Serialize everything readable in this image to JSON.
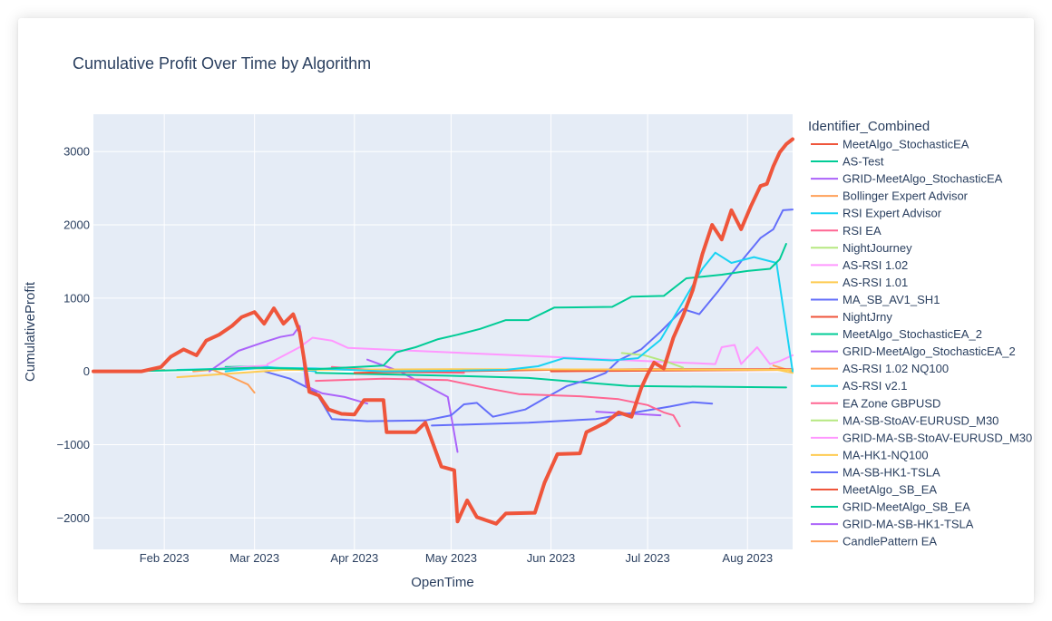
{
  "chart_data": {
    "type": "line",
    "title": "Cumulative Profit Over Time by Algorithm",
    "xlabel": "OpenTime",
    "ylabel": "CumulativeProfit",
    "xlim": [
      "2023-01-10",
      "2023-08-15"
    ],
    "ylim": [
      -2430,
      3510
    ],
    "x_ticks": [
      {
        "date": "2023-02-01",
        "label": "Feb 2023"
      },
      {
        "date": "2023-03-01",
        "label": "Mar 2023"
      },
      {
        "date": "2023-04-01",
        "label": "Apr 2023"
      },
      {
        "date": "2023-05-01",
        "label": "May 2023"
      },
      {
        "date": "2023-06-01",
        "label": "Jun 2023"
      },
      {
        "date": "2023-07-01",
        "label": "Jul 2023"
      },
      {
        "date": "2023-08-01",
        "label": "Aug 2023"
      }
    ],
    "y_ticks": [
      {
        "value": 3000,
        "label": "3000"
      },
      {
        "value": 2000,
        "label": "2000"
      },
      {
        "value": 1000,
        "label": "1000"
      },
      {
        "value": 0,
        "label": "0"
      },
      {
        "value": -1000,
        "label": "−1000"
      },
      {
        "value": -2000,
        "label": "−2000"
      }
    ],
    "grid": true,
    "legend_title": "Identifier_Combined",
    "legend_position": "right",
    "series": [
      {
        "name": "MeetAlgo_StochasticEA",
        "color": "#ef553b",
        "width": 4,
        "points": [
          [
            "2023-01-10",
            0
          ],
          [
            "2023-01-25",
            0
          ],
          [
            "2023-01-31",
            60
          ],
          [
            "2023-02-03",
            200
          ],
          [
            "2023-02-07",
            300
          ],
          [
            "2023-02-11",
            220
          ],
          [
            "2023-02-14",
            420
          ],
          [
            "2023-02-18",
            500
          ],
          [
            "2023-02-22",
            620
          ],
          [
            "2023-02-25",
            740
          ],
          [
            "2023-03-01",
            810
          ],
          [
            "2023-03-04",
            650
          ],
          [
            "2023-03-07",
            860
          ],
          [
            "2023-03-10",
            650
          ],
          [
            "2023-03-13",
            780
          ],
          [
            "2023-03-15",
            540
          ],
          [
            "2023-03-18",
            -280
          ],
          [
            "2023-03-21",
            -330
          ],
          [
            "2023-03-24",
            -520
          ],
          [
            "2023-03-28",
            -580
          ],
          [
            "2023-04-01",
            -590
          ],
          [
            "2023-04-04",
            -390
          ],
          [
            "2023-04-10",
            -390
          ],
          [
            "2023-04-11",
            -830
          ],
          [
            "2023-04-20",
            -830
          ],
          [
            "2023-04-23",
            -700
          ],
          [
            "2023-04-28",
            -1300
          ],
          [
            "2023-05-02",
            -1350
          ],
          [
            "2023-05-03",
            -2050
          ],
          [
            "2023-05-06",
            -1760
          ],
          [
            "2023-05-09",
            -1990
          ],
          [
            "2023-05-15",
            -2080
          ],
          [
            "2023-05-18",
            -1940
          ],
          [
            "2023-05-27",
            -1930
          ],
          [
            "2023-05-30",
            -1520
          ],
          [
            "2023-06-03",
            -1130
          ],
          [
            "2023-06-10",
            -1120
          ],
          [
            "2023-06-12",
            -830
          ],
          [
            "2023-06-18",
            -700
          ],
          [
            "2023-06-22",
            -560
          ],
          [
            "2023-06-26",
            -620
          ],
          [
            "2023-06-29",
            -230
          ],
          [
            "2023-07-01",
            -40
          ],
          [
            "2023-07-03",
            120
          ],
          [
            "2023-07-06",
            40
          ],
          [
            "2023-07-09",
            460
          ],
          [
            "2023-07-12",
            760
          ],
          [
            "2023-07-15",
            1110
          ],
          [
            "2023-07-18",
            1600
          ],
          [
            "2023-07-21",
            2000
          ],
          [
            "2023-07-24",
            1800
          ],
          [
            "2023-07-27",
            2200
          ],
          [
            "2023-07-30",
            1940
          ],
          [
            "2023-08-02",
            2250
          ],
          [
            "2023-08-05",
            2530
          ],
          [
            "2023-08-07",
            2560
          ],
          [
            "2023-08-09",
            2800
          ],
          [
            "2023-08-11",
            2990
          ],
          [
            "2023-08-13",
            3100
          ],
          [
            "2023-08-15",
            3170
          ]
        ]
      },
      {
        "name": "AS-Test",
        "color": "#00cc96",
        "width": 2,
        "points": [
          [
            "2023-01-20",
            0
          ],
          [
            "2023-02-10",
            20
          ],
          [
            "2023-03-01",
            50
          ],
          [
            "2023-03-20",
            30
          ],
          [
            "2023-04-10",
            80
          ],
          [
            "2023-04-14",
            260
          ],
          [
            "2023-04-20",
            330
          ],
          [
            "2023-04-27",
            440
          ],
          [
            "2023-05-03",
            500
          ],
          [
            "2023-05-10",
            580
          ],
          [
            "2023-05-18",
            700
          ],
          [
            "2023-05-25",
            700
          ],
          [
            "2023-06-02",
            870
          ],
          [
            "2023-06-20",
            880
          ],
          [
            "2023-06-26",
            1020
          ],
          [
            "2023-07-06",
            1030
          ],
          [
            "2023-07-13",
            1270
          ],
          [
            "2023-07-24",
            1320
          ],
          [
            "2023-08-01",
            1370
          ],
          [
            "2023-08-08",
            1400
          ],
          [
            "2023-08-11",
            1530
          ],
          [
            "2023-08-13",
            1740
          ]
        ]
      },
      {
        "name": "GRID-MeetAlgo_StochasticEA",
        "color": "#ab63fa",
        "width": 2,
        "points": [
          [
            "2023-02-15",
            0
          ],
          [
            "2023-02-24",
            280
          ],
          [
            "2023-03-04",
            400
          ],
          [
            "2023-03-09",
            470
          ],
          [
            "2023-03-13",
            500
          ],
          [
            "2023-03-15",
            620
          ],
          [
            "2023-03-17",
            -200
          ],
          [
            "2023-03-22",
            -300
          ],
          [
            "2023-03-29",
            -350
          ],
          [
            "2023-04-05",
            -440
          ]
        ]
      },
      {
        "name": "Bollinger Expert Advisor",
        "color": "#ffa15a",
        "width": 2,
        "points": [
          [
            "2023-02-10",
            0
          ],
          [
            "2023-02-16",
            20
          ],
          [
            "2023-02-22",
            -80
          ],
          [
            "2023-02-27",
            -180
          ],
          [
            "2023-03-01",
            -290
          ]
        ]
      },
      {
        "name": "RSI Expert Advisor",
        "color": "#19d3f3",
        "width": 2,
        "points": [
          [
            "2023-02-05",
            20
          ],
          [
            "2023-03-05",
            50
          ],
          [
            "2023-03-20",
            40
          ],
          [
            "2023-04-10",
            0
          ],
          [
            "2023-05-05",
            10
          ],
          [
            "2023-05-18",
            20
          ],
          [
            "2023-05-28",
            70
          ],
          [
            "2023-06-05",
            180
          ],
          [
            "2023-06-20",
            150
          ],
          [
            "2023-06-28",
            180
          ],
          [
            "2023-07-05",
            430
          ],
          [
            "2023-07-12",
            950
          ],
          [
            "2023-07-18",
            1400
          ],
          [
            "2023-07-22",
            1620
          ],
          [
            "2023-07-27",
            1480
          ],
          [
            "2023-08-03",
            1560
          ],
          [
            "2023-08-10",
            1480
          ],
          [
            "2023-08-15",
            0
          ]
        ]
      },
      {
        "name": "RSI EA",
        "color": "#ff6692",
        "width": 2,
        "points": [
          [
            "2023-03-20",
            -130
          ],
          [
            "2023-04-10",
            -100
          ],
          [
            "2023-04-30",
            -120
          ],
          [
            "2023-05-12",
            -230
          ],
          [
            "2023-05-22",
            -310
          ],
          [
            "2023-06-10",
            -340
          ],
          [
            "2023-06-22",
            -380
          ],
          [
            "2023-07-01",
            -460
          ],
          [
            "2023-07-06",
            -560
          ],
          [
            "2023-07-09",
            -600
          ],
          [
            "2023-07-11",
            -750
          ]
        ]
      },
      {
        "name": "NightJourney",
        "color": "#b6e880",
        "width": 2,
        "points": [
          [
            "2023-06-23",
            250
          ],
          [
            "2023-06-30",
            220
          ],
          [
            "2023-07-07",
            130
          ],
          [
            "2023-07-12",
            50
          ]
        ]
      },
      {
        "name": "AS-RSI 1.02",
        "color": "#ff97ff",
        "width": 2,
        "points": [
          [
            "2023-03-05",
            100
          ],
          [
            "2023-03-15",
            330
          ],
          [
            "2023-03-19",
            460
          ],
          [
            "2023-03-25",
            420
          ],
          [
            "2023-03-30",
            320
          ],
          [
            "2023-07-22",
            100
          ],
          [
            "2023-07-24",
            330
          ],
          [
            "2023-07-28",
            360
          ],
          [
            "2023-07-30",
            100
          ],
          [
            "2023-08-04",
            330
          ],
          [
            "2023-08-08",
            100
          ],
          [
            "2023-08-11",
            140
          ],
          [
            "2023-08-15",
            220
          ]
        ]
      },
      {
        "name": "AS-RSI 1.01",
        "color": "#fecb52",
        "width": 2,
        "points": [
          [
            "2023-02-05",
            -80
          ],
          [
            "2023-03-10",
            20
          ],
          [
            "2023-05-01",
            30
          ],
          [
            "2023-08-15",
            20
          ]
        ]
      },
      {
        "name": "MA_SB_AV1_SH1",
        "color": "#636efa",
        "width": 2,
        "points": [
          [
            "2023-03-04",
            0
          ],
          [
            "2023-03-12",
            -100
          ],
          [
            "2023-03-20",
            -280
          ],
          [
            "2023-03-25",
            -650
          ],
          [
            "2023-04-05",
            -680
          ],
          [
            "2023-04-23",
            -670
          ],
          [
            "2023-05-01",
            -600
          ],
          [
            "2023-05-05",
            -450
          ],
          [
            "2023-05-09",
            -430
          ],
          [
            "2023-05-14",
            -620
          ],
          [
            "2023-05-24",
            -520
          ],
          [
            "2023-05-30",
            -370
          ],
          [
            "2023-06-06",
            -200
          ],
          [
            "2023-06-14",
            -90
          ],
          [
            "2023-06-18",
            -20
          ],
          [
            "2023-06-22",
            150
          ],
          [
            "2023-06-29",
            300
          ],
          [
            "2023-07-05",
            540
          ],
          [
            "2023-07-12",
            850
          ],
          [
            "2023-07-17",
            780
          ],
          [
            "2023-07-23",
            1100
          ],
          [
            "2023-07-30",
            1500
          ],
          [
            "2023-08-05",
            1820
          ],
          [
            "2023-08-09",
            1940
          ],
          [
            "2023-08-12",
            2200
          ],
          [
            "2023-08-15",
            2210
          ]
        ]
      },
      {
        "name": "NightJrny",
        "color": "#ef553b",
        "width": 2,
        "points": [
          [
            "2023-04-01",
            -20
          ],
          [
            "2023-06-01",
            20
          ],
          [
            "2023-07-01",
            30
          ],
          [
            "2023-08-15",
            30
          ]
        ]
      },
      {
        "name": "MeetAlgo_StochasticEA_2",
        "color": "#00cc96",
        "width": 2,
        "points": [
          [
            "2023-03-20",
            -20
          ],
          [
            "2023-05-01",
            -60
          ],
          [
            "2023-05-25",
            -90
          ],
          [
            "2023-06-25",
            -200
          ],
          [
            "2023-08-13",
            -220
          ]
        ]
      },
      {
        "name": "GRID-MeetAlgo_StochasticEA_2",
        "color": "#ab63fa",
        "width": 2,
        "points": [
          [
            "2023-04-05",
            160
          ],
          [
            "2023-04-15",
            0
          ],
          [
            "2023-04-30",
            -350
          ],
          [
            "2023-05-03",
            -1100
          ]
        ]
      },
      {
        "name": "AS-RSI 1.02 NQ100",
        "color": "#ffa15a",
        "width": 2,
        "points": [
          [
            "2023-08-09",
            80
          ],
          [
            "2023-08-15",
            0
          ]
        ]
      },
      {
        "name": "AS-RSI v2.1",
        "color": "#19d3f3",
        "width": 2,
        "points": [
          [
            "2023-02-20",
            0
          ],
          [
            "2023-03-05",
            60
          ],
          [
            "2023-03-20",
            0
          ]
        ]
      },
      {
        "name": "EA Zone GBPUSD",
        "color": "#ff6692",
        "width": 2,
        "points": [
          [
            "2023-03-25",
            60
          ],
          [
            "2023-04-15",
            -10
          ],
          [
            "2023-05-05",
            -20
          ]
        ]
      },
      {
        "name": "MA-SB-StoAV-EURUSD_M30",
        "color": "#b6e880",
        "width": 2,
        "points": [
          [
            "2023-02-10",
            20
          ],
          [
            "2023-03-05",
            40
          ]
        ]
      },
      {
        "name": "GRID-MA-SB-StoAV-EURUSD_M30",
        "color": "#ff97ff",
        "width": 2,
        "points": [
          [
            "2023-02-18",
            40
          ],
          [
            "2023-03-05",
            80
          ]
        ]
      },
      {
        "name": "MA-HK1-NQ100",
        "color": "#fecb52",
        "width": 2,
        "points": [
          [
            "2023-08-08",
            40
          ],
          [
            "2023-08-15",
            -20
          ]
        ]
      },
      {
        "name": "MA-SB-HK1-TSLA",
        "color": "#636efa",
        "width": 2,
        "points": [
          [
            "2023-04-25",
            -740
          ],
          [
            "2023-05-25",
            -700
          ],
          [
            "2023-06-15",
            -650
          ],
          [
            "2023-07-08",
            -480
          ],
          [
            "2023-07-15",
            -420
          ],
          [
            "2023-07-21",
            -440
          ]
        ]
      },
      {
        "name": "MeetAlgo_SB_EA",
        "color": "#ef553b",
        "width": 2,
        "points": [
          [
            "2023-06-01",
            0
          ],
          [
            "2023-08-15",
            20
          ]
        ]
      },
      {
        "name": "GRID-MeetAlgo_SB_EA",
        "color": "#00cc96",
        "width": 2,
        "points": [
          [
            "2023-02-20",
            60
          ],
          [
            "2023-03-05",
            70
          ]
        ]
      },
      {
        "name": "GRID-MA-SB-HK1-TSLA",
        "color": "#ab63fa",
        "width": 2,
        "points": [
          [
            "2023-06-15",
            -550
          ],
          [
            "2023-07-05",
            -600
          ]
        ]
      },
      {
        "name": "CandlePattern EA",
        "color": "#ffa15a",
        "width": 2,
        "points": [
          [
            "2023-01-20",
            -10
          ],
          [
            "2023-02-01",
            20
          ]
        ]
      }
    ]
  }
}
